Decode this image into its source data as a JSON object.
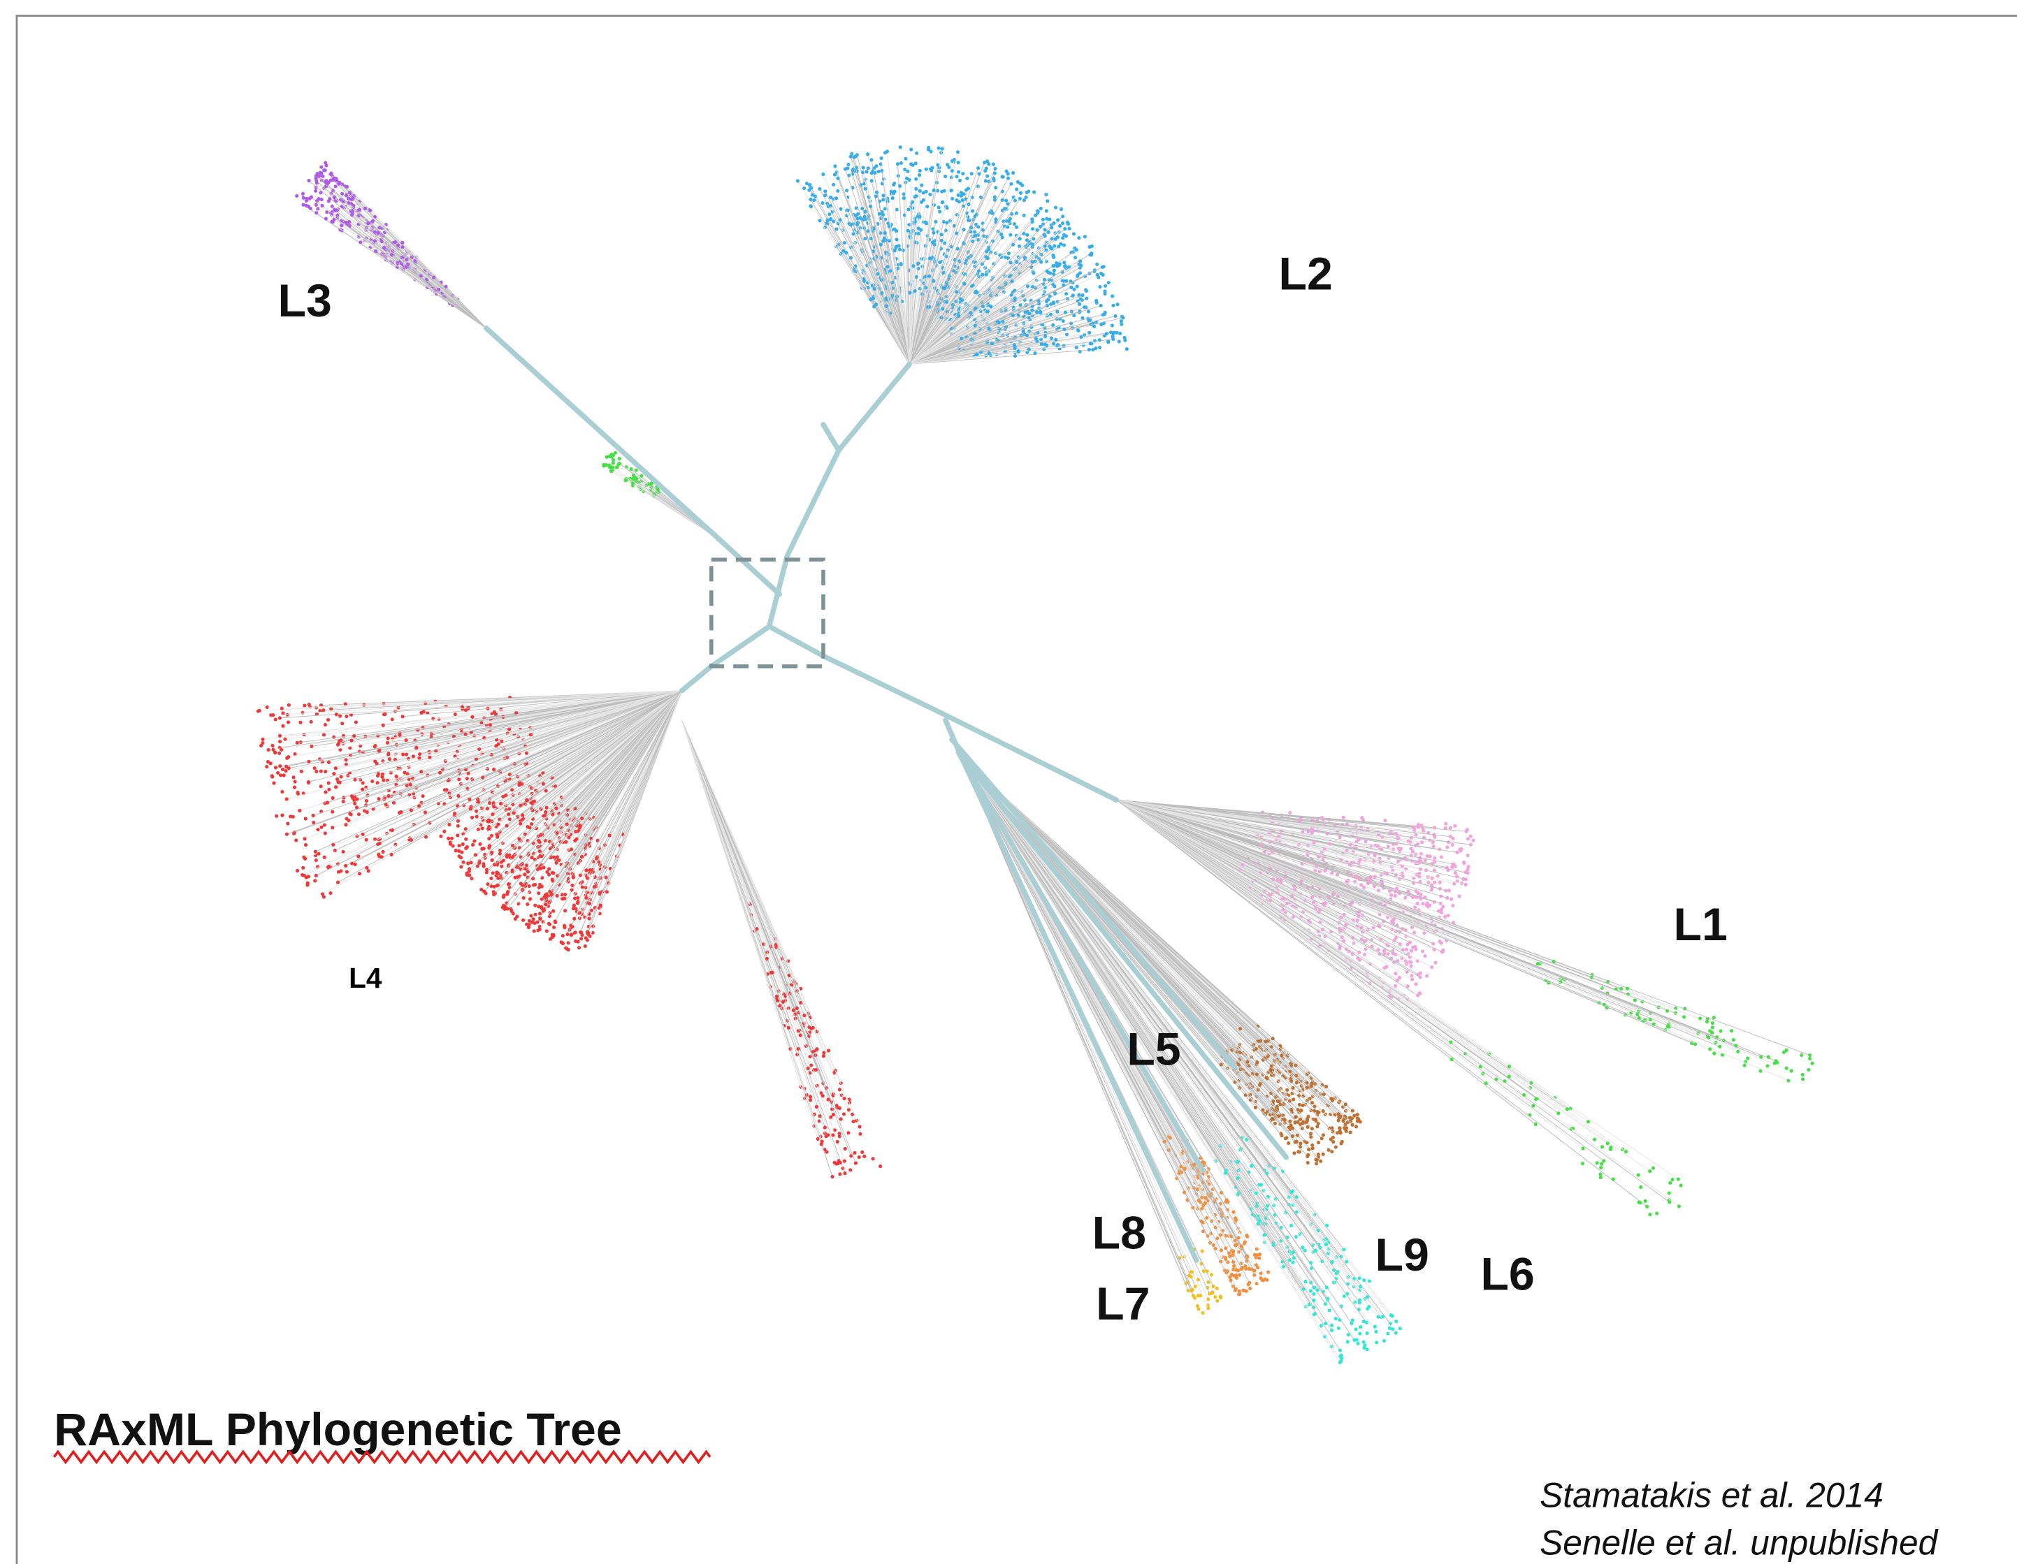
{
  "title": "RAxML Phylogenetic Tree",
  "labels": {
    "L1": "L1",
    "L2": "L2",
    "L3": "L3",
    "L4": "L4",
    "L5": "L5",
    "L6": "L6",
    "L7": "L7",
    "L8": "L8",
    "L9": "L9"
  },
  "citations": [
    "Stamatakis et al. 2014",
    "Senelle et al. unpublished"
  ]
}
